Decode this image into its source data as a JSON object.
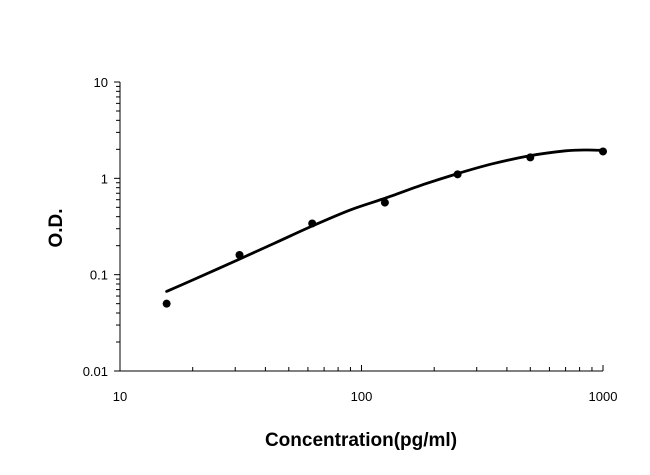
{
  "chart_data": {
    "type": "scatter",
    "title": "",
    "xlabel": "Concentration(pg/ml)",
    "ylabel": "O.D.",
    "xscale": "log",
    "yscale": "log",
    "xlim": [
      10,
      1000
    ],
    "ylim": [
      0.01,
      10
    ],
    "x_ticks": [
      10,
      100,
      1000
    ],
    "x_tick_labels": [
      "10",
      "100",
      "1000"
    ],
    "y_ticks": [
      0.01,
      0.1,
      1,
      10
    ],
    "y_tick_labels": [
      "0.01",
      "0.1",
      "1",
      "10"
    ],
    "grid": false,
    "legend": "none",
    "series": [
      {
        "x": [
          15.6,
          31.25,
          62.5,
          125,
          250,
          500,
          1000
        ],
        "y": [
          0.05,
          0.16,
          0.34,
          0.56,
          1.1,
          1.65,
          1.9
        ]
      }
    ],
    "fit_curve": {
      "x": [
        15.6,
        20,
        31.25,
        45,
        62.5,
        90,
        125,
        180,
        250,
        350,
        500,
        700,
        850,
        1000
      ],
      "y": [
        0.067,
        0.088,
        0.145,
        0.22,
        0.32,
        0.47,
        0.62,
        0.86,
        1.12,
        1.42,
        1.72,
        1.93,
        1.97,
        1.95
      ]
    },
    "colors": {
      "marker": "#000000",
      "line": "#000000",
      "axis": "#000000"
    }
  }
}
